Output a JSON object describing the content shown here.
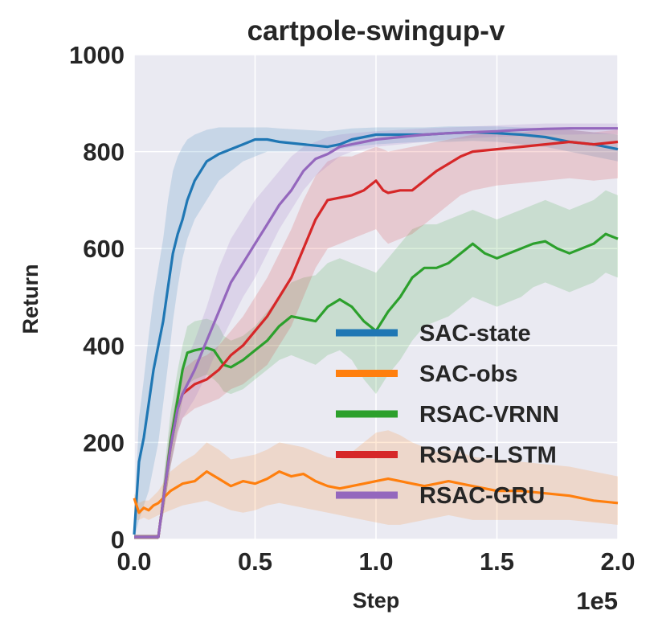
{
  "chart_data": {
    "type": "line",
    "title": "cartpole-swingup-v",
    "xlabel": "Step",
    "ylabel": "Return",
    "x_offset_label": "1e5",
    "xlim": [
      0,
      2.0
    ],
    "ylim": [
      0,
      1000
    ],
    "x_ticks": [
      "0.0",
      "0.5",
      "1.0",
      "1.5",
      "2.0"
    ],
    "y_ticks": [
      "0",
      "200",
      "400",
      "600",
      "800",
      "1000"
    ],
    "grid": true,
    "legend_position": "lower-right",
    "series": [
      {
        "name": "SAC-state",
        "color": "#1f77b4",
        "x": [
          0,
          0.02,
          0.04,
          0.06,
          0.08,
          0.1,
          0.12,
          0.14,
          0.16,
          0.18,
          0.2,
          0.22,
          0.25,
          0.3,
          0.35,
          0.4,
          0.45,
          0.5,
          0.55,
          0.6,
          0.7,
          0.8,
          0.85,
          0.9,
          1.0,
          1.1,
          1.2,
          1.3,
          1.4,
          1.5,
          1.6,
          1.7,
          1.8,
          1.9,
          2.0
        ],
        "y": [
          10,
          160,
          210,
          280,
          350,
          400,
          450,
          520,
          590,
          630,
          660,
          700,
          740,
          780,
          795,
          805,
          815,
          825,
          825,
          820,
          815,
          810,
          815,
          825,
          835,
          835,
          835,
          838,
          840,
          838,
          835,
          830,
          820,
          815,
          805
        ],
        "lower": [
          0,
          40,
          70,
          100,
          150,
          200,
          280,
          360,
          450,
          520,
          580,
          620,
          660,
          700,
          740,
          760,
          780,
          790,
          800,
          800,
          800,
          800,
          805,
          810,
          815,
          818,
          820,
          820,
          822,
          820,
          815,
          810,
          800,
          790,
          780
        ],
        "upper": [
          30,
          250,
          330,
          420,
          500,
          560,
          620,
          700,
          760,
          790,
          810,
          825,
          835,
          845,
          850,
          850,
          850,
          850,
          850,
          848,
          845,
          842,
          845,
          848,
          850,
          850,
          850,
          852,
          852,
          852,
          850,
          848,
          845,
          840,
          835
        ]
      },
      {
        "name": "SAC-obs",
        "color": "#ff7f0e",
        "x": [
          0,
          0.02,
          0.04,
          0.06,
          0.08,
          0.1,
          0.15,
          0.2,
          0.25,
          0.3,
          0.35,
          0.4,
          0.45,
          0.5,
          0.55,
          0.6,
          0.65,
          0.7,
          0.75,
          0.8,
          0.85,
          0.9,
          0.95,
          1.0,
          1.05,
          1.1,
          1.15,
          1.2,
          1.25,
          1.3,
          1.35,
          1.4,
          1.5,
          1.6,
          1.7,
          1.8,
          1.9,
          2.0
        ],
        "y": [
          85,
          55,
          65,
          60,
          70,
          75,
          100,
          115,
          120,
          140,
          125,
          110,
          120,
          115,
          125,
          140,
          130,
          135,
          120,
          110,
          105,
          110,
          115,
          120,
          125,
          120,
          115,
          110,
          115,
          120,
          115,
          110,
          100,
          100,
          95,
          90,
          80,
          75
        ],
        "lower": [
          40,
          40,
          45,
          40,
          45,
          50,
          60,
          70,
          75,
          80,
          70,
          60,
          55,
          60,
          70,
          75,
          70,
          65,
          60,
          55,
          50,
          45,
          40,
          35,
          30,
          30,
          35,
          40,
          45,
          50,
          45,
          40,
          40,
          40,
          40,
          40,
          35,
          30
        ],
        "upper": [
          95,
          75,
          80,
          80,
          90,
          100,
          140,
          160,
          175,
          200,
          185,
          165,
          170,
          175,
          185,
          200,
          195,
          190,
          180,
          170,
          165,
          180,
          200,
          220,
          225,
          215,
          200,
          190,
          180,
          185,
          180,
          170,
          165,
          160,
          155,
          150,
          140,
          130
        ]
      },
      {
        "name": "RSAC-VRNN",
        "color": "#2ca02c",
        "x": [
          0,
          0.05,
          0.1,
          0.12,
          0.15,
          0.18,
          0.2,
          0.22,
          0.25,
          0.3,
          0.33,
          0.35,
          0.37,
          0.4,
          0.45,
          0.5,
          0.55,
          0.6,
          0.65,
          0.7,
          0.75,
          0.8,
          0.85,
          0.9,
          0.95,
          1.0,
          1.05,
          1.1,
          1.15,
          1.2,
          1.25,
          1.3,
          1.35,
          1.4,
          1.45,
          1.5,
          1.55,
          1.6,
          1.65,
          1.7,
          1.75,
          1.8,
          1.85,
          1.9,
          1.95,
          2.0
        ],
        "y": [
          5,
          5,
          5,
          80,
          200,
          290,
          350,
          385,
          390,
          395,
          390,
          375,
          360,
          355,
          370,
          390,
          410,
          440,
          460,
          455,
          450,
          480,
          495,
          480,
          450,
          430,
          470,
          500,
          540,
          560,
          560,
          570,
          590,
          610,
          590,
          580,
          590,
          600,
          610,
          615,
          600,
          590,
          600,
          610,
          630,
          620
        ],
        "lower": [
          0,
          0,
          0,
          50,
          150,
          230,
          290,
          320,
          330,
          340,
          330,
          320,
          305,
          300,
          310,
          330,
          350,
          370,
          380,
          370,
          360,
          380,
          390,
          370,
          330,
          300,
          340,
          370,
          410,
          440,
          450,
          460,
          480,
          500,
          490,
          480,
          490,
          500,
          520,
          530,
          520,
          510,
          520,
          530,
          550,
          540
        ],
        "upper": [
          10,
          10,
          10,
          120,
          260,
          350,
          400,
          440,
          450,
          455,
          450,
          440,
          420,
          410,
          420,
          440,
          470,
          500,
          530,
          540,
          545,
          570,
          580,
          570,
          560,
          550,
          580,
          610,
          640,
          650,
          650,
          660,
          670,
          680,
          670,
          660,
          670,
          680,
          690,
          700,
          690,
          680,
          690,
          700,
          720,
          710
        ]
      },
      {
        "name": "RSAC-LSTM",
        "color": "#d62728",
        "x": [
          0,
          0.05,
          0.1,
          0.12,
          0.15,
          0.18,
          0.2,
          0.25,
          0.3,
          0.35,
          0.4,
          0.45,
          0.5,
          0.55,
          0.6,
          0.65,
          0.7,
          0.75,
          0.8,
          0.85,
          0.9,
          0.95,
          1.0,
          1.03,
          1.05,
          1.1,
          1.15,
          1.2,
          1.25,
          1.3,
          1.35,
          1.4,
          1.5,
          1.6,
          1.7,
          1.8,
          1.9,
          2.0
        ],
        "y": [
          5,
          5,
          5,
          80,
          190,
          270,
          300,
          320,
          330,
          350,
          380,
          400,
          430,
          460,
          500,
          540,
          600,
          660,
          700,
          705,
          710,
          720,
          740,
          720,
          715,
          720,
          720,
          740,
          760,
          775,
          790,
          800,
          805,
          810,
          815,
          820,
          815,
          820
        ],
        "lower": [
          0,
          0,
          0,
          50,
          150,
          220,
          250,
          270,
          280,
          290,
          310,
          320,
          340,
          360,
          400,
          440,
          500,
          560,
          600,
          610,
          620,
          630,
          640,
          620,
          610,
          620,
          630,
          650,
          670,
          690,
          710,
          720,
          730,
          735,
          740,
          745,
          740,
          745
        ],
        "upper": [
          10,
          10,
          10,
          110,
          230,
          310,
          350,
          370,
          380,
          400,
          430,
          460,
          500,
          540,
          590,
          640,
          700,
          750,
          780,
          790,
          790,
          800,
          810,
          805,
          800,
          805,
          810,
          815,
          820,
          825,
          830,
          835,
          840,
          840,
          845,
          845,
          840,
          845
        ]
      },
      {
        "name": "RSAC-GRU",
        "color": "#9467bd",
        "x": [
          0,
          0.05,
          0.1,
          0.12,
          0.15,
          0.18,
          0.2,
          0.25,
          0.3,
          0.35,
          0.4,
          0.45,
          0.5,
          0.55,
          0.6,
          0.65,
          0.7,
          0.75,
          0.8,
          0.85,
          0.9,
          0.95,
          1.0,
          1.1,
          1.2,
          1.3,
          1.4,
          1.5,
          1.6,
          1.7,
          1.8,
          1.9,
          2.0
        ],
        "y": [
          5,
          5,
          5,
          80,
          190,
          270,
          300,
          350,
          410,
          470,
          530,
          570,
          610,
          650,
          690,
          720,
          760,
          785,
          795,
          810,
          815,
          820,
          825,
          830,
          835,
          838,
          840,
          842,
          845,
          847,
          848,
          848,
          848
        ],
        "lower": [
          0,
          0,
          0,
          50,
          150,
          220,
          250,
          290,
          340,
          400,
          450,
          500,
          540,
          590,
          640,
          680,
          720,
          750,
          770,
          790,
          800,
          805,
          810,
          815,
          820,
          825,
          828,
          830,
          832,
          835,
          835,
          836,
          836
        ],
        "upper": [
          10,
          10,
          10,
          110,
          230,
          310,
          350,
          410,
          480,
          560,
          620,
          660,
          700,
          730,
          760,
          790,
          810,
          820,
          830,
          835,
          838,
          840,
          842,
          845,
          848,
          850,
          852,
          854,
          856,
          858,
          858,
          858,
          858
        ]
      }
    ]
  }
}
